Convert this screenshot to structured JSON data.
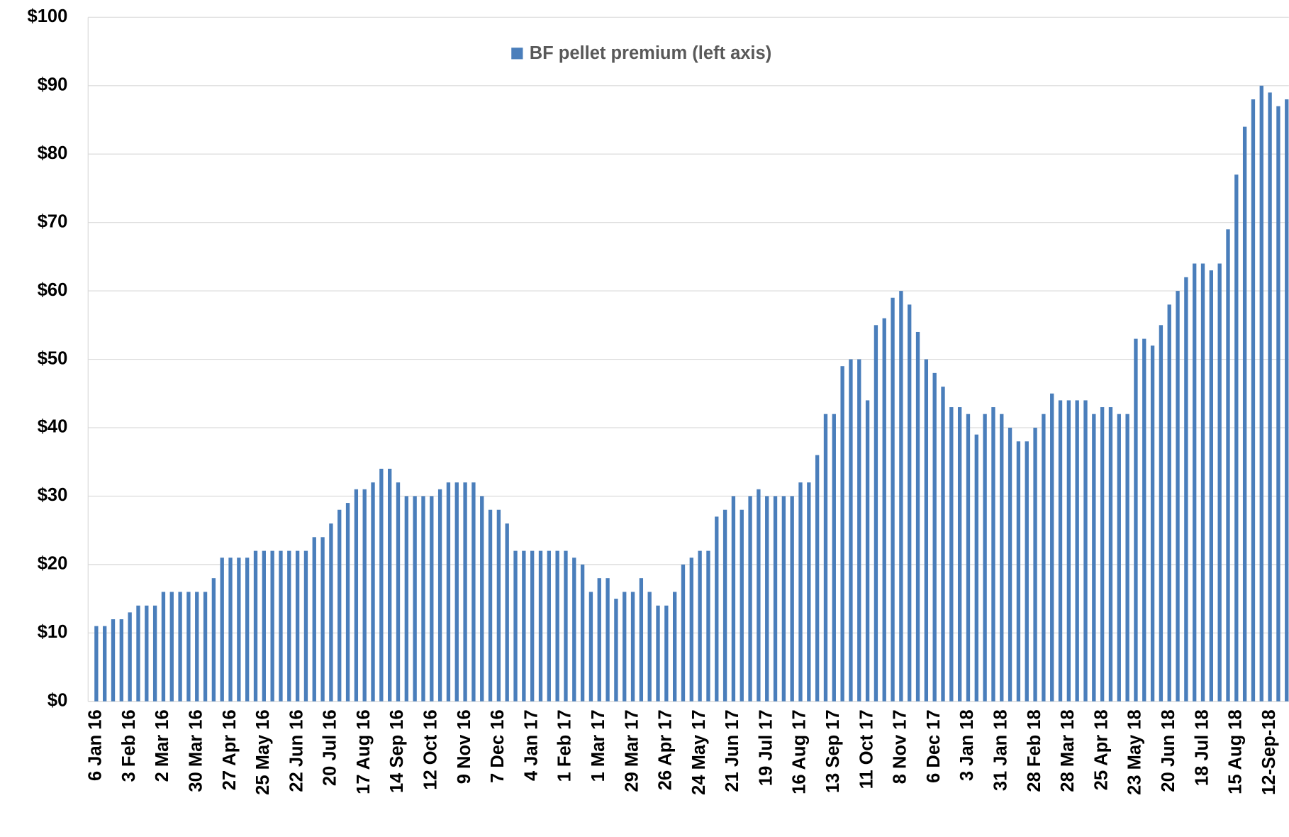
{
  "chart_data": {
    "type": "bar",
    "series": [
      {
        "name": "BF pellet premium (left axis)",
        "color": "#4a7ebb",
        "values": [
          11,
          11,
          12,
          12,
          13,
          14,
          14,
          14,
          16,
          16,
          16,
          16,
          16,
          16,
          18,
          21,
          21,
          21,
          21,
          22,
          22,
          22,
          22,
          22,
          22,
          22,
          24,
          24,
          26,
          28,
          29,
          31,
          31,
          32,
          34,
          34,
          32,
          30,
          30,
          30,
          30,
          31,
          32,
          32,
          32,
          32,
          30,
          28,
          28,
          26,
          22,
          22,
          22,
          22,
          22,
          22,
          22,
          21,
          20,
          16,
          18,
          18,
          15,
          16,
          16,
          18,
          16,
          14,
          14,
          16,
          20,
          21,
          22,
          22,
          27,
          28,
          30,
          28,
          30,
          31,
          30,
          30,
          30,
          30,
          32,
          32,
          36,
          42,
          42,
          49,
          50,
          50,
          44,
          55,
          56,
          59,
          60,
          58,
          54,
          50,
          48,
          46,
          43,
          43,
          42,
          39,
          42,
          43,
          42,
          40,
          38,
          38,
          40,
          42,
          45,
          44,
          44,
          44,
          44,
          42,
          43,
          43,
          42,
          42,
          53,
          53,
          52,
          55,
          58,
          60,
          62,
          64,
          64,
          63,
          64,
          69,
          77,
          84,
          88,
          90,
          89,
          87,
          88
        ]
      }
    ],
    "categories": [
      "6 Jan 16",
      null,
      null,
      null,
      "3 Feb 16",
      null,
      null,
      null,
      "2 Mar 16",
      null,
      null,
      null,
      "30 Mar 16",
      null,
      null,
      null,
      "27 Apr 16",
      null,
      null,
      null,
      "25 May 16",
      null,
      null,
      null,
      "22 Jun 16",
      null,
      null,
      null,
      "20 Jul 16",
      null,
      null,
      null,
      "17 Aug 16",
      null,
      null,
      null,
      "14 Sep 16",
      null,
      null,
      null,
      "12 Oct 16",
      null,
      null,
      null,
      "9 Nov 16",
      null,
      null,
      null,
      "7 Dec 16",
      null,
      null,
      null,
      "4 Jan 17",
      null,
      null,
      null,
      "1 Feb 17",
      null,
      null,
      null,
      "1 Mar 17",
      null,
      null,
      null,
      "29 Mar 17",
      null,
      null,
      null,
      "26 Apr 17",
      null,
      null,
      null,
      "24 May 17",
      null,
      null,
      null,
      "21 Jun 17",
      null,
      null,
      null,
      "19 Jul 17",
      null,
      null,
      null,
      "16 Aug 17",
      null,
      null,
      null,
      "13 Sep 17",
      null,
      null,
      null,
      "11 Oct 17",
      null,
      null,
      null,
      "8 Nov 17",
      null,
      null,
      null,
      "6 Dec 17",
      null,
      null,
      null,
      "3 Jan 18",
      null,
      null,
      null,
      "31 Jan 18",
      null,
      null,
      null,
      "28 Feb 18",
      null,
      null,
      null,
      "28 Mar 18",
      null,
      null,
      null,
      "25 Apr 18",
      null,
      null,
      null,
      "23 May 18",
      null,
      null,
      null,
      "20 Jun 18",
      null,
      null,
      null,
      "18 Jul 18",
      null,
      null,
      null,
      "15 Aug 18",
      null,
      null,
      null,
      "12-Sep-18",
      null,
      null
    ],
    "ylim": [
      0,
      100
    ],
    "yticks": [
      {
        "value": 0,
        "label": "$0"
      },
      {
        "value": 10,
        "label": "$10"
      },
      {
        "value": 20,
        "label": "$20"
      },
      {
        "value": 30,
        "label": "$30"
      },
      {
        "value": 40,
        "label": "$40"
      },
      {
        "value": 50,
        "label": "$50"
      },
      {
        "value": 60,
        "label": "$60"
      },
      {
        "value": 70,
        "label": "$70"
      },
      {
        "value": 80,
        "label": "$80"
      },
      {
        "value": 90,
        "label": "$90"
      },
      {
        "value": 100,
        "label": "$100"
      }
    ],
    "grid": true,
    "legend": "top"
  }
}
